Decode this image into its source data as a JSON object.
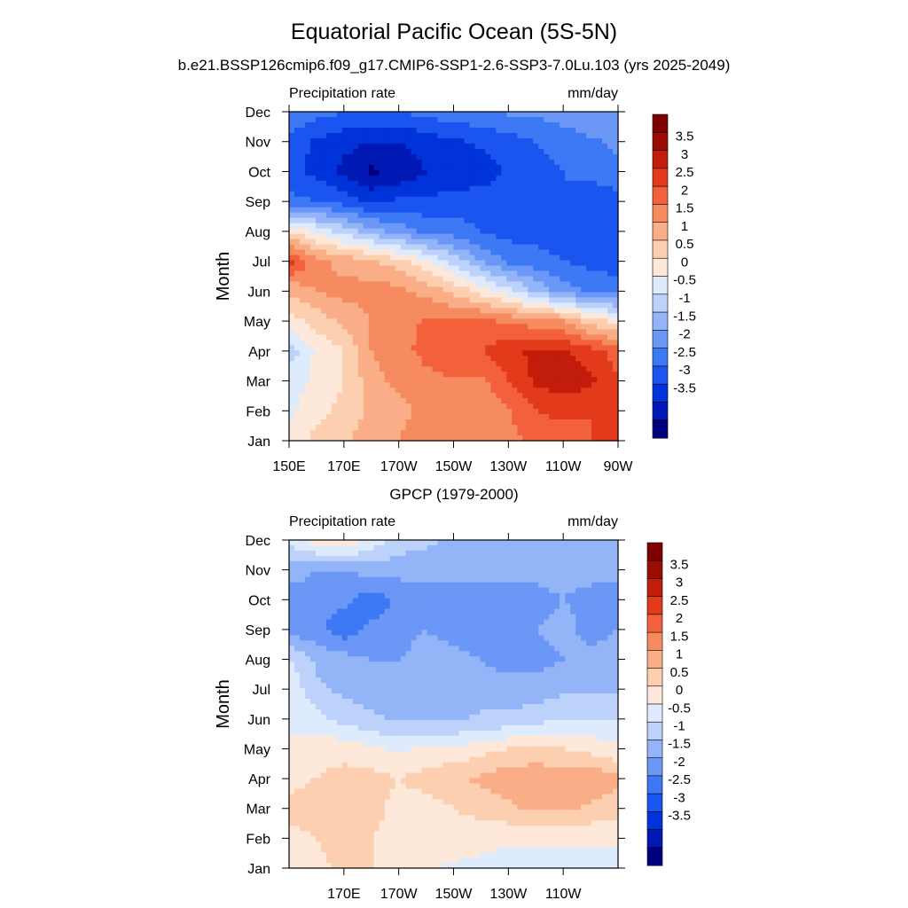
{
  "title": "Equatorial Pacific Ocean (5S-5N)",
  "colors": [
    "#00007f",
    "#0019b4",
    "#0033d9",
    "#1a55f0",
    "#3d78f5",
    "#6b97f7",
    "#93b5f8",
    "#bcd2fb",
    "#deebfc",
    "#fde8d9",
    "#fccfb0",
    "#faae87",
    "#f78b60",
    "#f2613b",
    "#e23a1b",
    "#c21d0a",
    "#9b0c04",
    "#7f0000"
  ],
  "color_scale": {
    "labels": [
      "3.5",
      "3",
      "2.5",
      "2",
      "1.5",
      "1",
      "0.5",
      "0",
      "-0.5",
      "-1",
      "-1.5",
      "-2",
      "-2.5",
      "-3",
      "-3.5"
    ]
  },
  "chart_data": [
    {
      "type": "heatmap",
      "subtitle": "b.e21.BSSP126cmip6.f09_g17.CMIP6-SSP1-2.6-SSP3-7.0Lu.103 (yrs 2025-2049)",
      "left_label": "Precipitation rate",
      "right_label": "mm/day",
      "ylabel": "Month",
      "x_tick_labels": [
        "150E",
        "170E",
        "170W",
        "150W",
        "130W",
        "110W",
        "90W"
      ],
      "y_tick_labels": [
        "Jan",
        "Feb",
        "Mar",
        "Apr",
        "May",
        "Jun",
        "Jul",
        "Aug",
        "Sep",
        "Oct",
        "Nov",
        "Dec"
      ],
      "xlim_lon_east": [
        150,
        270
      ],
      "ylim_month": [
        1,
        12
      ],
      "x_lon_east": [
        150,
        160,
        170,
        180,
        190,
        200,
        210,
        220,
        230,
        240,
        250,
        260,
        270
      ],
      "y_month": [
        1,
        2,
        3,
        4,
        5,
        6,
        7,
        8,
        9,
        10,
        11,
        12
      ],
      "z": [
        [
          0.6,
          1.2,
          1.4,
          1.8,
          2.0,
          2.4,
          2.4,
          2.2,
          2.4,
          2.6,
          2.6,
          3.0,
          3.0
        ],
        [
          0.4,
          0.8,
          1.2,
          1.6,
          1.8,
          2.2,
          2.2,
          2.0,
          2.4,
          3.0,
          3.2,
          3.0,
          3.0
        ],
        [
          0.3,
          0.6,
          1.0,
          1.8,
          2.2,
          2.4,
          2.4,
          2.4,
          3.0,
          3.6,
          3.8,
          3.6,
          3.0
        ],
        [
          -0.3,
          0.6,
          1.0,
          2.0,
          2.4,
          2.6,
          3.0,
          3.0,
          3.4,
          3.6,
          3.6,
          3.2,
          2.8
        ],
        [
          0.8,
          1.2,
          1.6,
          2.0,
          2.2,
          2.6,
          2.6,
          2.6,
          2.4,
          2.2,
          2.0,
          1.2,
          0.8
        ],
        [
          1.6,
          2.0,
          2.2,
          2.2,
          2.2,
          1.8,
          1.4,
          0.8,
          0.2,
          -0.6,
          -1.2,
          -1.6,
          -1.8
        ],
        [
          3.2,
          2.2,
          1.8,
          1.6,
          1.2,
          0.6,
          -0.2,
          -1.0,
          -1.6,
          -1.8,
          -2.0,
          -2.2,
          -2.2
        ],
        [
          1.0,
          0.4,
          -0.2,
          -0.8,
          -1.2,
          -1.6,
          -1.8,
          -2.0,
          -2.2,
          -2.2,
          -2.2,
          -2.4,
          -2.2
        ],
        [
          -1.8,
          -2.0,
          -2.2,
          -2.6,
          -2.4,
          -2.4,
          -2.2,
          -2.2,
          -2.2,
          -2.0,
          -2.0,
          -2.4,
          -2.2
        ],
        [
          -2.4,
          -2.6,
          -3.2,
          -3.6,
          -3.4,
          -3.0,
          -3.0,
          -2.8,
          -2.4,
          -2.2,
          -2.0,
          -1.8,
          -1.6
        ],
        [
          -2.2,
          -2.6,
          -2.8,
          -3.0,
          -3.0,
          -2.8,
          -2.6,
          -2.4,
          -2.2,
          -2.0,
          -1.8,
          -1.6,
          -1.4
        ],
        [
          -1.4,
          -1.8,
          -2.0,
          -2.0,
          -2.0,
          -1.8,
          -1.6,
          -1.6,
          -1.4,
          -1.4,
          -1.2,
          -1.0,
          -1.0
        ]
      ]
    },
    {
      "type": "heatmap",
      "subtitle": "GPCP (1979-2000)",
      "left_label": "Precipitation rate",
      "right_label": "mm/day",
      "ylabel": "Month",
      "x_tick_labels": [
        "170E",
        "170W",
        "150W",
        "130W",
        "110W"
      ],
      "y_tick_labels": [
        "Jan",
        "Feb",
        "Mar",
        "Apr",
        "May",
        "Jun",
        "Jul",
        "Aug",
        "Sep",
        "Oct",
        "Nov",
        "Dec"
      ],
      "xlim_lon_east": [
        150,
        270
      ],
      "ylim_month": [
        1,
        12
      ],
      "x_lon_east": [
        150,
        160,
        170,
        180,
        190,
        200,
        210,
        220,
        230,
        240,
        250,
        260,
        270
      ],
      "y_month": [
        1,
        2,
        3,
        4,
        5,
        6,
        7,
        8,
        9,
        10,
        11,
        12
      ],
      "z": [
        [
          0.6,
          0.8,
          1.2,
          1.0,
          0.8,
          0.6,
          0.4,
          0.4,
          0.3,
          0.2,
          0.2,
          0.3,
          0.3
        ],
        [
          0.8,
          1.0,
          1.4,
          1.0,
          0.8,
          0.8,
          0.8,
          0.6,
          0.6,
          0.6,
          0.6,
          0.6,
          0.6
        ],
        [
          1.2,
          1.4,
          1.4,
          1.2,
          0.8,
          0.8,
          1.0,
          1.2,
          1.4,
          1.6,
          1.6,
          1.4,
          1.2
        ],
        [
          0.8,
          1.0,
          1.2,
          1.2,
          1.0,
          1.2,
          1.4,
          1.6,
          1.8,
          2.0,
          1.8,
          2.0,
          1.6
        ],
        [
          0.6,
          0.8,
          0.8,
          0.6,
          0.4,
          0.6,
          0.6,
          0.8,
          1.0,
          1.0,
          1.0,
          0.8,
          0.6
        ],
        [
          0.4,
          0.2,
          -0.2,
          -0.4,
          -0.6,
          -0.6,
          -0.6,
          -0.4,
          -0.4,
          -0.2,
          0.0,
          0.0,
          0.0
        ],
        [
          0.4,
          -0.4,
          -0.6,
          -0.8,
          -0.8,
          -0.8,
          -0.8,
          -0.8,
          -0.8,
          -0.8,
          -0.6,
          -0.6,
          -0.6
        ],
        [
          0.0,
          -0.6,
          -0.8,
          -1.0,
          -1.0,
          -0.8,
          -0.8,
          -1.0,
          -1.2,
          -1.2,
          -1.0,
          -0.8,
          -0.8
        ],
        [
          -1.2,
          -1.4,
          -1.8,
          -1.4,
          -1.2,
          -1.0,
          -1.2,
          -1.4,
          -1.2,
          -1.0,
          -0.8,
          -1.2,
          -1.0
        ],
        [
          -1.2,
          -1.2,
          -1.4,
          -1.8,
          -1.4,
          -1.2,
          -1.2,
          -1.4,
          -1.4,
          -1.2,
          -1.0,
          -1.2,
          -1.2
        ],
        [
          -0.8,
          -1.0,
          -1.0,
          -0.8,
          -0.8,
          -0.8,
          -0.8,
          -0.8,
          -0.8,
          -0.8,
          -0.8,
          -0.8,
          -0.8
        ],
        [
          0.2,
          0.8,
          1.0,
          0.4,
          -0.2,
          -0.4,
          -0.6,
          -0.6,
          -0.6,
          -0.8,
          -0.8,
          -0.8,
          -0.8
        ]
      ]
    }
  ]
}
